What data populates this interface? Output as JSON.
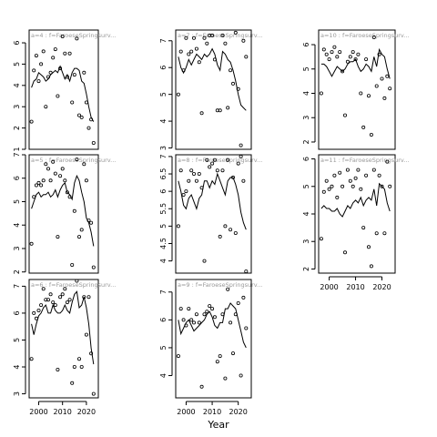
{
  "figure": {
    "xlabel": "Year"
  },
  "chart_data": [
    {
      "type": "scatter",
      "title": "a=4 : f=FaroeseSpringsurv...",
      "xlim": [
        1996,
        2025
      ],
      "ylim": [
        1,
        6.6
      ],
      "yticks": [
        1,
        2,
        3,
        4,
        5,
        6
      ],
      "xticks": [],
      "series": [
        {
          "type": "scatter",
          "x": [
            1997,
            1998,
            1999,
            2000,
            2001,
            2002,
            2003,
            2004,
            2005,
            2006,
            2007,
            2008,
            2009,
            2010,
            2011,
            2012,
            2013,
            2014,
            2015,
            2016,
            2017,
            2018,
            2019,
            2020,
            2021,
            2022,
            2023
          ],
          "y": [
            2.3,
            4.7,
            5.4,
            4.2,
            5.0,
            5.6,
            3.0,
            4.4,
            4.6,
            5.3,
            5.7,
            3.5,
            4.8,
            6.3,
            5.5,
            4.4,
            5.5,
            3.2,
            4.5,
            6.2,
            2.6,
            2.5,
            4.6,
            3.2,
            2.0,
            2.4,
            1.3
          ]
        },
        {
          "type": "line",
          "x": [
            1997,
            1998,
            1999,
            2000,
            2001,
            2002,
            2003,
            2004,
            2005,
            2006,
            2007,
            2008,
            2009,
            2010,
            2011,
            2012,
            2013,
            2014,
            2015,
            2016,
            2017,
            2018,
            2019,
            2020,
            2021,
            2022,
            2023
          ],
          "y": [
            3.9,
            4.2,
            4.3,
            4.6,
            4.5,
            4.4,
            4.2,
            4.3,
            4.5,
            4.6,
            4.7,
            4.6,
            4.9,
            4.6,
            4.3,
            4.5,
            4.2,
            4.6,
            4.8,
            4.8,
            4.7,
            4.2,
            4.1,
            3.6,
            3.0,
            2.5,
            2.3
          ]
        }
      ]
    },
    {
      "type": "scatter",
      "title": "a=7 : f=FaroeseSpringsurv...",
      "xlim": [
        1996,
        2025
      ],
      "ylim": [
        2.95,
        7.4
      ],
      "yticks": [
        3,
        4,
        5,
        6,
        7
      ],
      "xticks": [],
      "series": [
        {
          "type": "scatter",
          "x": [
            1997,
            1998,
            1999,
            2000,
            2001,
            2002,
            2003,
            2004,
            2005,
            2006,
            2007,
            2008,
            2009,
            2010,
            2011,
            2012,
            2013,
            2014,
            2015,
            2016,
            2017,
            2018,
            2019,
            2020,
            2021,
            2022,
            2023
          ],
          "y": [
            5.0,
            6.6,
            5.9,
            7.1,
            6.5,
            6.6,
            7.1,
            6.7,
            6.2,
            4.3,
            7.1,
            6.9,
            7.2,
            7.2,
            6.3,
            4.4,
            4.4,
            7.2,
            6.9,
            4.5,
            5.9,
            5.4,
            7.3,
            5.2,
            3.1,
            7.0,
            6.4
          ]
        },
        {
          "type": "line",
          "x": [
            1997,
            1998,
            1999,
            2000,
            2001,
            2002,
            2003,
            2004,
            2005,
            2006,
            2007,
            2008,
            2009,
            2010,
            2011,
            2012,
            2013,
            2014,
            2015,
            2016,
            2017,
            2018,
            2019,
            2020,
            2021,
            2022,
            2023
          ],
          "y": [
            6.4,
            6.0,
            5.8,
            6.0,
            6.3,
            6.1,
            6.3,
            6.5,
            6.4,
            6.3,
            6.5,
            6.4,
            6.5,
            6.7,
            6.5,
            6.1,
            5.9,
            6.6,
            6.5,
            6.3,
            6.2,
            5.9,
            5.5,
            5.0,
            4.6,
            4.5,
            4.4
          ]
        }
      ]
    },
    {
      "type": "scatter",
      "title": "a=10 : f=FaroeseSpringsurv...",
      "xlim": [
        1996,
        2025
      ],
      "ylim": [
        1.7,
        6.6
      ],
      "yticks": [
        2,
        3,
        4,
        5,
        6
      ],
      "xticks": [],
      "series": [
        {
          "type": "scatter",
          "x": [
            1997,
            1998,
            1999,
            2000,
            2001,
            2002,
            2003,
            2004,
            2005,
            2006,
            2007,
            2008,
            2009,
            2010,
            2011,
            2012,
            2013,
            2014,
            2015,
            2016,
            2017,
            2018,
            2019,
            2020,
            2021,
            2022,
            2023
          ],
          "y": [
            4.0,
            5.8,
            5.6,
            5.4,
            5.7,
            5.9,
            5.5,
            5.7,
            4.9,
            3.1,
            5.3,
            5.5,
            5.7,
            5.4,
            5.6,
            4.0,
            2.6,
            5.4,
            3.9,
            2.3,
            6.3,
            4.3,
            5.6,
            4.6,
            3.8,
            4.7,
            4.2
          ]
        },
        {
          "type": "line",
          "x": [
            1997,
            1998,
            1999,
            2000,
            2001,
            2002,
            2003,
            2004,
            2005,
            2006,
            2007,
            2008,
            2009,
            2010,
            2011,
            2012,
            2013,
            2014,
            2015,
            2016,
            2017,
            2018,
            2019,
            2020,
            2021,
            2022,
            2023
          ],
          "y": [
            5.2,
            5.2,
            5.1,
            4.9,
            4.7,
            4.9,
            5.1,
            5.0,
            4.9,
            5.0,
            5.2,
            5.3,
            5.3,
            5.4,
            5.1,
            4.9,
            5.0,
            5.2,
            5.1,
            4.9,
            5.5,
            5.1,
            5.8,
            5.6,
            5.5,
            5.0,
            4.6
          ]
        }
      ]
    },
    {
      "type": "scatter",
      "title": "a=5 : f=FaroeseSpringsurv...",
      "xlim": [
        1996,
        2025
      ],
      "ylim": [
        1.95,
        7.0
      ],
      "yticks": [
        2,
        3,
        4,
        5,
        6,
        7
      ],
      "xticks": [],
      "series": [
        {
          "type": "scatter",
          "x": [
            1997,
            1998,
            1999,
            2000,
            2001,
            2002,
            2003,
            2004,
            2005,
            2006,
            2007,
            2008,
            2009,
            2010,
            2011,
            2012,
            2013,
            2014,
            2015,
            2016,
            2017,
            2018,
            2019,
            2020,
            2021,
            2022,
            2023
          ],
          "y": [
            3.2,
            5.2,
            5.7,
            5.8,
            5.7,
            5.9,
            6.6,
            6.4,
            5.9,
            6.7,
            6.2,
            3.5,
            6.1,
            6.4,
            5.9,
            5.4,
            5.2,
            2.3,
            4.6,
            6.8,
            3.5,
            3.8,
            6.6,
            5.9,
            4.2,
            4.1,
            2.2
          ]
        },
        {
          "type": "line",
          "x": [
            1997,
            1998,
            1999,
            2000,
            2001,
            2002,
            2003,
            2004,
            2005,
            2006,
            2007,
            2008,
            2009,
            2010,
            2011,
            2012,
            2013,
            2014,
            2015,
            2016,
            2017,
            2018,
            2019,
            2020,
            2021,
            2022,
            2023
          ],
          "y": [
            4.7,
            5.0,
            5.3,
            5.4,
            5.2,
            5.3,
            5.3,
            5.4,
            5.2,
            5.3,
            5.5,
            5.2,
            5.5,
            5.7,
            5.8,
            5.4,
            5.3,
            5.1,
            5.8,
            6.1,
            5.9,
            5.4,
            5.0,
            4.3,
            4.1,
            3.7,
            3.1
          ]
        }
      ]
    },
    {
      "type": "scatter",
      "title": "a=8 : f=FaroeseSpringsurv...",
      "xlim": [
        1996,
        2025
      ],
      "ylim": [
        3.65,
        7.05
      ],
      "yticks": [
        4.0,
        4.5,
        5.0,
        5.5,
        6.0,
        6.5,
        7.0
      ],
      "xticks": [],
      "series": [
        {
          "type": "scatter",
          "x": [
            1997,
            1998,
            1999,
            2000,
            2001,
            2002,
            2003,
            2004,
            2005,
            2006,
            2007,
            2008,
            2009,
            2010,
            2011,
            2012,
            2013,
            2014,
            2015,
            2016,
            2017,
            2018,
            2019,
            2020,
            2021,
            2022,
            2023
          ],
          "y": [
            5.0,
            6.6,
            5.9,
            6.0,
            6.3,
            6.6,
            6.5,
            6.3,
            6.5,
            6.1,
            4.0,
            6.9,
            6.7,
            6.8,
            6.9,
            6.6,
            4.7,
            6.6,
            5.0,
            6.9,
            4.9,
            6.4,
            4.8,
            6.8,
            7.0,
            6.3,
            3.7
          ]
        },
        {
          "type": "line",
          "x": [
            1997,
            1998,
            1999,
            2000,
            2001,
            2002,
            2003,
            2004,
            2005,
            2006,
            2007,
            2008,
            2009,
            2010,
            2011,
            2012,
            2013,
            2014,
            2015,
            2016,
            2017,
            2018,
            2019,
            2020,
            2021,
            2022,
            2023
          ],
          "y": [
            6.3,
            6.0,
            5.6,
            5.5,
            5.8,
            5.9,
            5.7,
            5.5,
            5.8,
            5.9,
            6.3,
            6.3,
            6.1,
            6.3,
            6.2,
            6.5,
            6.3,
            6.1,
            5.9,
            6.3,
            6.4,
            6.4,
            6.2,
            5.9,
            5.4,
            5.1,
            4.9
          ]
        }
      ]
    },
    {
      "type": "scatter",
      "title": "a=11 : f=FaroeseSpringsurv...",
      "xlim": [
        1996,
        2025
      ],
      "ylim": [
        1.85,
        6.15
      ],
      "yticks": [
        2,
        3,
        4,
        5,
        6
      ],
      "xticks": [
        2000,
        2010,
        2020
      ],
      "series": [
        {
          "type": "scatter",
          "x": [
            1997,
            1998,
            1999,
            2000,
            2001,
            2002,
            2003,
            2004,
            2005,
            2006,
            2007,
            2008,
            2009,
            2010,
            2011,
            2012,
            2013,
            2014,
            2015,
            2016,
            2017,
            2018,
            2019,
            2020,
            2021,
            2022,
            2023
          ],
          "y": [
            3.1,
            4.8,
            5.2,
            4.9,
            5.0,
            5.4,
            4.6,
            5.5,
            5.0,
            2.6,
            5.6,
            5.2,
            5.0,
            5.3,
            5.6,
            4.9,
            3.5,
            5.4,
            2.8,
            2.1,
            5.6,
            3.3,
            5.4,
            5.0,
            3.3,
            5.9,
            5.0
          ]
        },
        {
          "type": "line",
          "x": [
            1997,
            1998,
            1999,
            2000,
            2001,
            2002,
            2003,
            2004,
            2005,
            2006,
            2007,
            2008,
            2009,
            2010,
            2011,
            2012,
            2013,
            2014,
            2015,
            2016,
            2017,
            2018,
            2019,
            2020,
            2021,
            2022,
            2023
          ],
          "y": [
            4.2,
            4.3,
            4.2,
            4.2,
            4.1,
            4.1,
            4.2,
            4.0,
            3.9,
            4.1,
            4.3,
            4.2,
            4.4,
            4.5,
            4.4,
            4.6,
            4.3,
            4.5,
            4.6,
            4.5,
            4.9,
            4.3,
            5.1,
            5.0,
            4.9,
            4.4,
            4.1
          ]
        }
      ]
    },
    {
      "type": "scatter",
      "title": "a=6 : f=FaroeseSpringsurv...",
      "xlim": [
        1996,
        2025
      ],
      "ylim": [
        2.85,
        7.25
      ],
      "yticks": [
        3,
        4,
        5,
        6,
        7
      ],
      "xticks": [
        2000,
        2010,
        2020
      ],
      "series": [
        {
          "type": "scatter",
          "x": [
            1997,
            1998,
            1999,
            2000,
            2001,
            2002,
            2003,
            2004,
            2005,
            2006,
            2007,
            2008,
            2009,
            2010,
            2011,
            2012,
            2013,
            2014,
            2015,
            2016,
            2017,
            2018,
            2019,
            2020,
            2021,
            2022,
            2023
          ],
          "y": [
            4.3,
            6.0,
            5.8,
            6.1,
            6.3,
            6.9,
            6.5,
            6.5,
            6.7,
            6.4,
            6.3,
            3.9,
            6.6,
            6.7,
            6.9,
            6.4,
            6.5,
            3.4,
            4.0,
            7.2,
            4.3,
            4.0,
            6.6,
            5.2,
            6.6,
            4.5,
            3.0
          ]
        },
        {
          "type": "line",
          "x": [
            1997,
            1998,
            1999,
            2000,
            2001,
            2002,
            2003,
            2004,
            2005,
            2006,
            2007,
            2008,
            2009,
            2010,
            2011,
            2012,
            2013,
            2014,
            2015,
            2016,
            2017,
            2018,
            2019,
            2020,
            2021,
            2022,
            2023
          ],
          "y": [
            5.6,
            5.2,
            5.6,
            5.9,
            6.0,
            6.2,
            6.3,
            6.0,
            6.0,
            6.3,
            6.1,
            6.0,
            6.0,
            6.1,
            6.3,
            6.1,
            6.0,
            6.4,
            6.7,
            6.8,
            6.2,
            6.3,
            6.6,
            6.2,
            5.6,
            4.7,
            4.1
          ]
        }
      ]
    },
    {
      "type": "scatter",
      "title": "a=9 : f=FaroeseSpringsurv...",
      "xlim": [
        1996,
        2025
      ],
      "ylim": [
        3.2,
        7.45
      ],
      "yticks": [
        4,
        5,
        6,
        7
      ],
      "xticks": [
        2000,
        2010,
        2020
      ],
      "series": [
        {
          "type": "scatter",
          "x": [
            1997,
            1998,
            1999,
            2000,
            2001,
            2002,
            2003,
            2004,
            2005,
            2006,
            2007,
            2008,
            2009,
            2010,
            2011,
            2012,
            2013,
            2014,
            2015,
            2016,
            2017,
            2018,
            2019,
            2020,
            2021,
            2022,
            2023
          ],
          "y": [
            4.7,
            6.4,
            6.0,
            5.8,
            6.4,
            6.0,
            5.9,
            6.2,
            5.9,
            3.6,
            6.2,
            6.3,
            6.5,
            6.4,
            6.1,
            4.5,
            4.7,
            6.2,
            3.9,
            7.1,
            5.9,
            4.8,
            6.2,
            6.6,
            4.0,
            6.8,
            5.7
          ]
        },
        {
          "type": "line",
          "x": [
            1997,
            1998,
            1999,
            2000,
            2001,
            2002,
            2003,
            2004,
            2005,
            2006,
            2007,
            2008,
            2009,
            2010,
            2011,
            2012,
            2013,
            2014,
            2015,
            2016,
            2017,
            2018,
            2019,
            2020,
            2021,
            2022,
            2023
          ],
          "y": [
            6.0,
            5.5,
            5.7,
            5.9,
            6.0,
            5.8,
            5.6,
            5.7,
            5.8,
            5.9,
            6.0,
            6.2,
            6.3,
            6.1,
            5.8,
            5.7,
            5.9,
            5.9,
            6.4,
            6.4,
            6.6,
            6.5,
            6.4,
            6.0,
            5.6,
            5.2,
            5.0
          ]
        }
      ]
    }
  ]
}
